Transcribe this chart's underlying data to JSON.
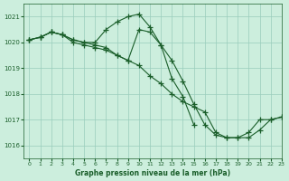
{
  "title": "Graphe pression niveau de la mer (hPa)",
  "bg_color": "#cceedd",
  "grid_color": "#99ccbb",
  "line_color": "#1a5e2a",
  "xlim": [
    -0.5,
    23
  ],
  "ylim": [
    1015.5,
    1021.5
  ],
  "yticks": [
    1016,
    1017,
    1018,
    1019,
    1020,
    1021
  ],
  "xticks": [
    0,
    1,
    2,
    3,
    4,
    5,
    6,
    7,
    8,
    9,
    10,
    11,
    12,
    13,
    14,
    15,
    16,
    17,
    18,
    19,
    20,
    21,
    22,
    23
  ],
  "series": [
    {
      "x": [
        0,
        1,
        2,
        3,
        4,
        5,
        6,
        7,
        8,
        9,
        10,
        11,
        12,
        13,
        14,
        15,
        16,
        17,
        18,
        19,
        20,
        21,
        22,
        23
      ],
      "y": [
        1020.1,
        1020.2,
        1020.4,
        1020.3,
        1020.1,
        1020.0,
        1019.9,
        1019.8,
        1019.5,
        1019.3,
        1019.1,
        1018.7,
        1018.4,
        1018.0,
        1017.7,
        1017.5,
        1017.3,
        1016.5,
        1016.3,
        1016.3,
        1016.3,
        1016.6,
        1017.0,
        1017.1
      ]
    },
    {
      "x": [
        0,
        1,
        2,
        3,
        4,
        5,
        6,
        7,
        8,
        9,
        10,
        11,
        12,
        13,
        14,
        15,
        16,
        17,
        18,
        19,
        20,
        21,
        22,
        23
      ],
      "y": [
        1020.1,
        1020.2,
        1020.4,
        1020.3,
        1020.0,
        1019.9,
        1019.8,
        1019.7,
        1019.5,
        1019.3,
        1020.5,
        1020.4,
        1019.9,
        1019.3,
        1018.5,
        1017.6,
        1016.8,
        1016.4,
        1016.3,
        1016.3,
        1016.5,
        1017.0,
        1017.0,
        1017.1
      ]
    },
    {
      "x": [
        0,
        1,
        2,
        3,
        4,
        5,
        6,
        7,
        8,
        9,
        10,
        11,
        12,
        13,
        14,
        15
      ],
      "y": [
        1020.1,
        1020.2,
        1020.4,
        1020.3,
        1020.1,
        1020.0,
        1020.0,
        1020.5,
        1020.8,
        1021.0,
        1021.1,
        1020.6,
        1019.9,
        1018.6,
        1017.9,
        1016.8
      ]
    }
  ]
}
